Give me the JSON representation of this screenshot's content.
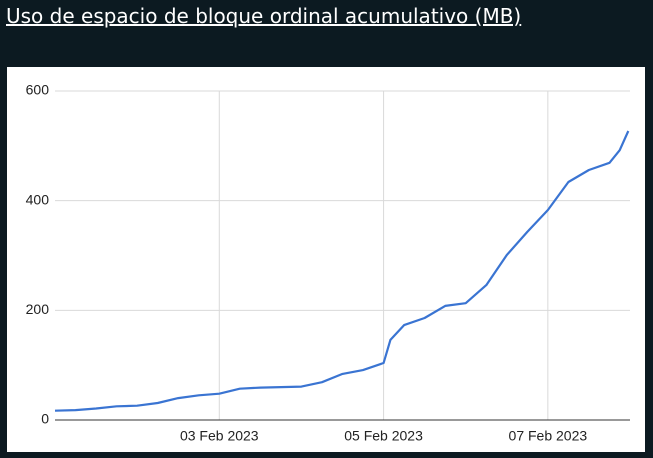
{
  "chart_data": {
    "type": "line",
    "title": "Uso de espacio de bloque ordinal acumulativo (MB)",
    "x": [
      "2023-02-01T00:00",
      "2023-02-01T06:00",
      "2023-02-01T12:00",
      "2023-02-01T18:00",
      "2023-02-02T00:00",
      "2023-02-02T06:00",
      "2023-02-02T12:00",
      "2023-02-02T18:00",
      "2023-02-03T00:00",
      "2023-02-03T06:00",
      "2023-02-03T12:00",
      "2023-02-03T18:00",
      "2023-02-04T00:00",
      "2023-02-04T06:00",
      "2023-02-04T12:00",
      "2023-02-04T18:00",
      "2023-02-05T00:00",
      "2023-02-05T02:00",
      "2023-02-05T06:00",
      "2023-02-05T12:00",
      "2023-02-05T18:00",
      "2023-02-06T00:00",
      "2023-02-06T06:00",
      "2023-02-06T12:00",
      "2023-02-06T18:00",
      "2023-02-07T00:00",
      "2023-02-07T06:00",
      "2023-02-07T12:00",
      "2023-02-07T18:00",
      "2023-02-07T21:00",
      "2023-02-07T23:30"
    ],
    "series": [
      {
        "name": "MB",
        "color": "#3a74d2",
        "values": [
          17,
          18,
          21,
          25,
          26,
          31,
          40,
          45,
          48,
          57,
          59,
          60,
          61,
          69,
          84,
          91,
          104,
          146,
          173,
          186,
          208,
          213,
          246,
          301,
          343,
          383,
          434,
          456,
          469,
          492,
          527
        ]
      }
    ],
    "xlim": [
      "2023-02-01",
      "2023-02-08"
    ],
    "xticks": [
      {
        "value": "2023-02-03",
        "label": "03 Feb 2023"
      },
      {
        "value": "2023-02-05",
        "label": "05 Feb 2023"
      },
      {
        "value": "2023-02-07",
        "label": "07 Feb 2023"
      }
    ],
    "ylim": [
      0,
      600
    ],
    "yticks": [
      0,
      200,
      400,
      600
    ],
    "grid": true
  }
}
